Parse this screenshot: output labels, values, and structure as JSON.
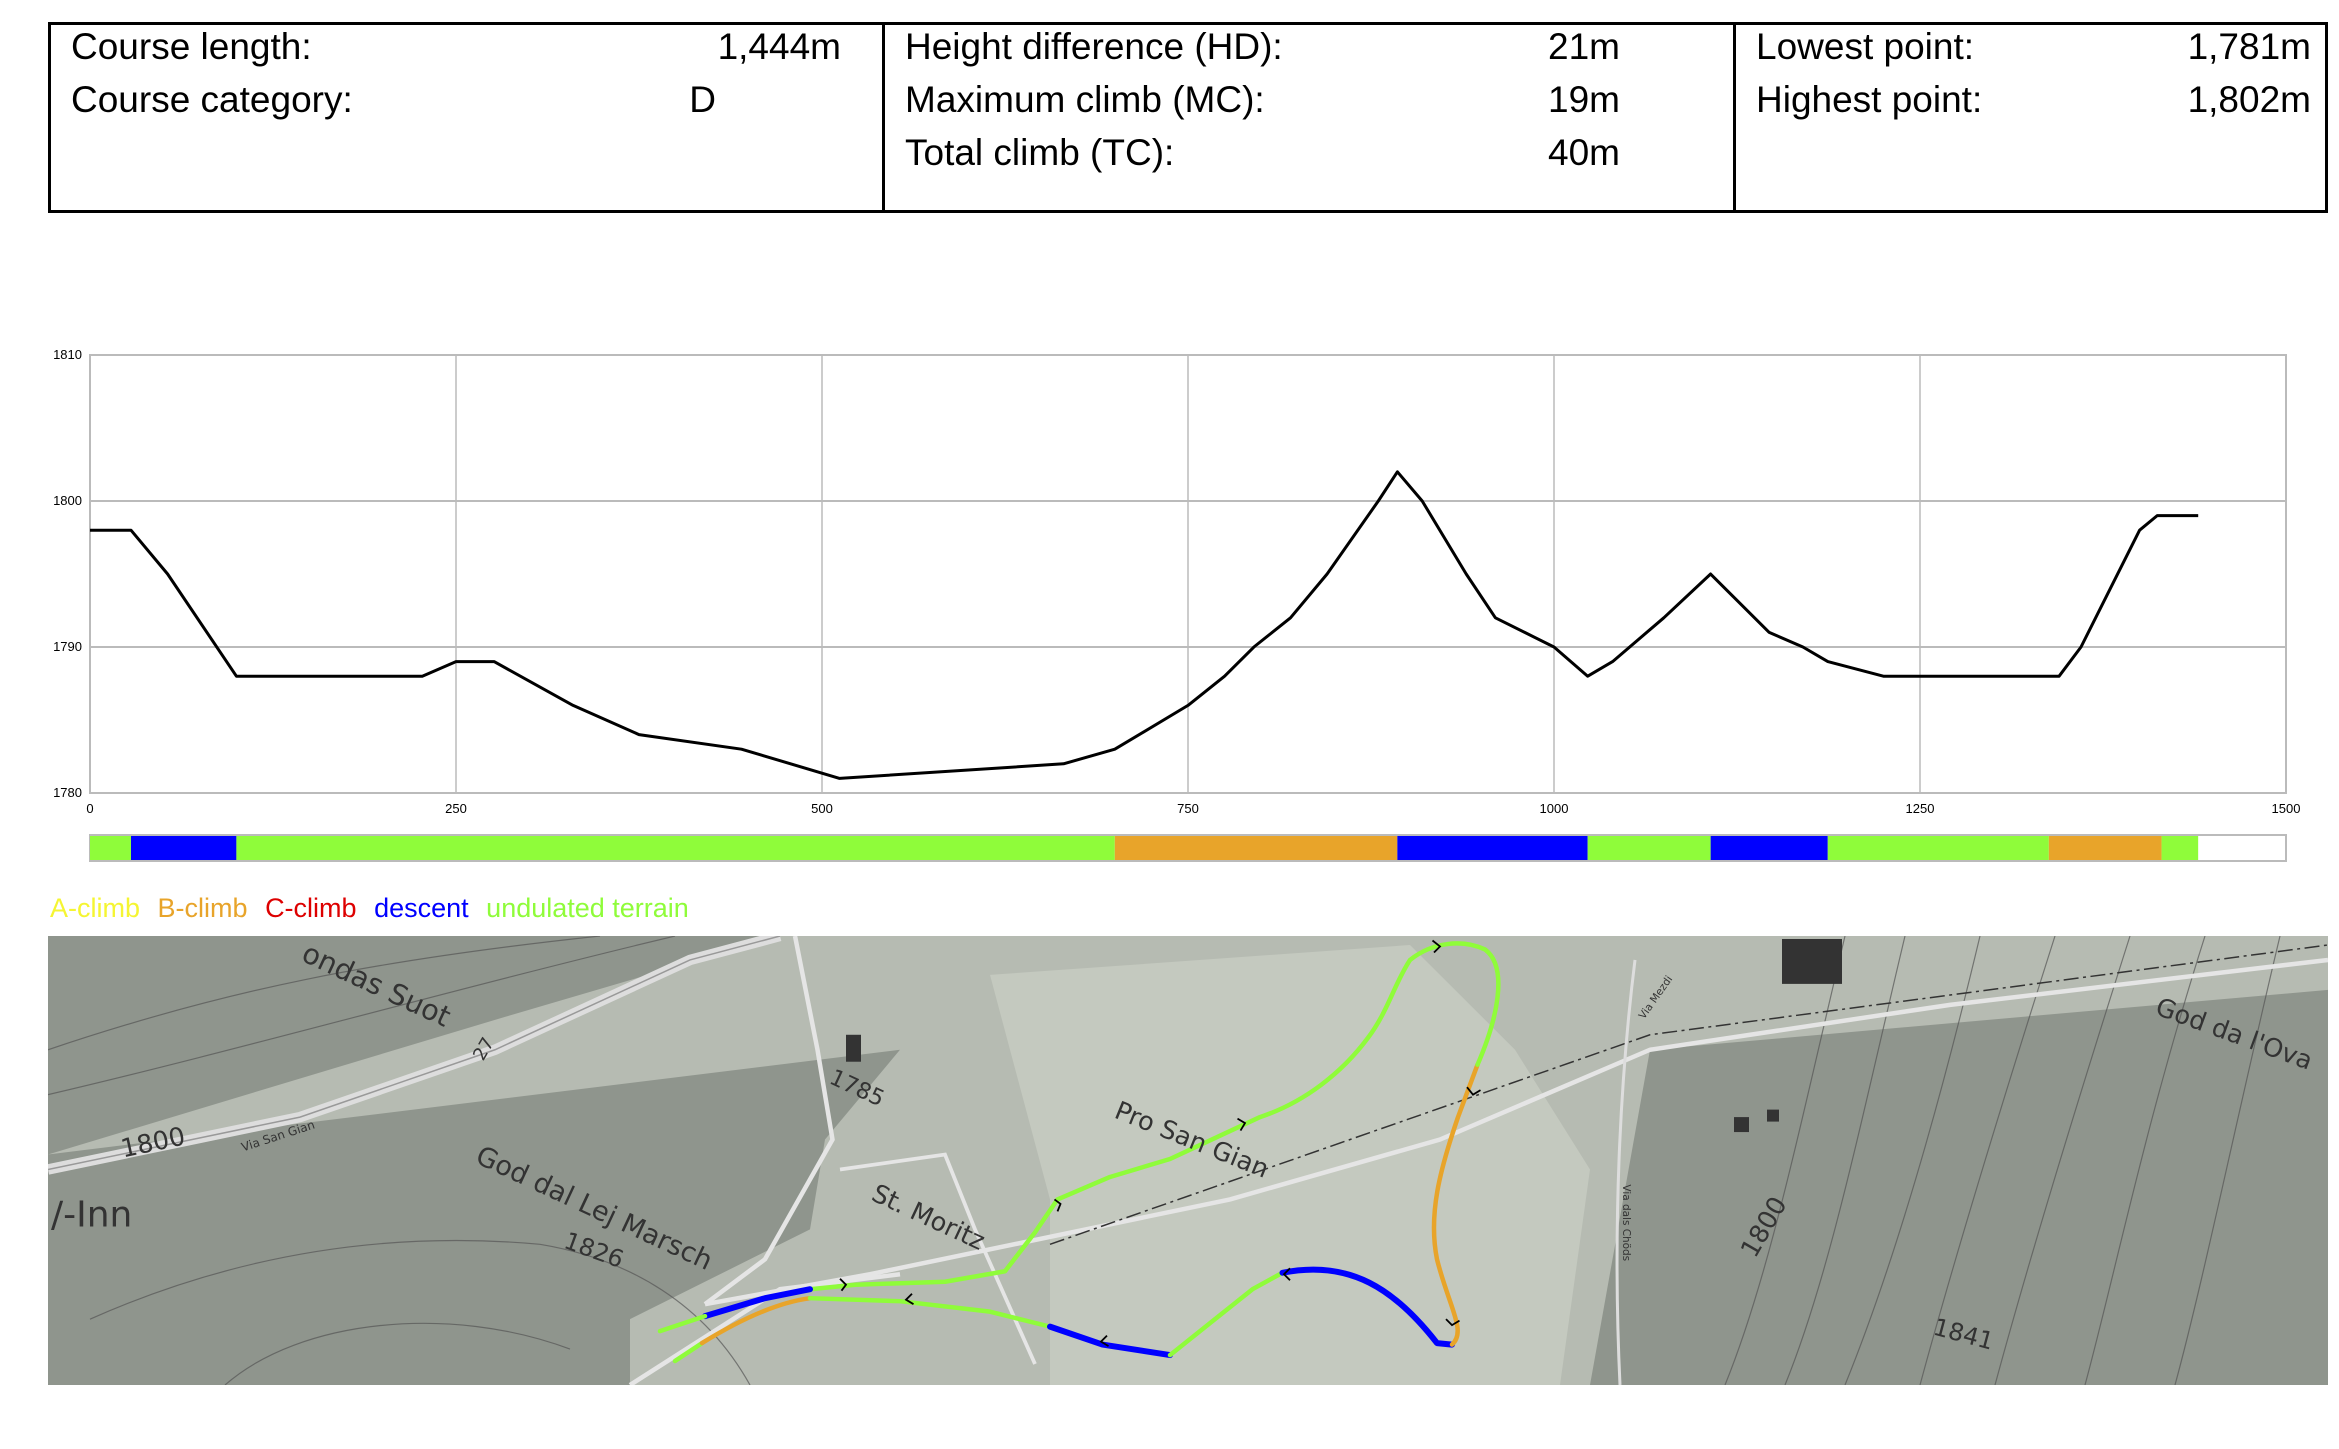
{
  "stats": {
    "col1": [
      {
        "label": "Course length:",
        "value": "1,444m"
      },
      {
        "label": "Course category:",
        "value": "D"
      }
    ],
    "col2": [
      {
        "label": "Height difference (HD):",
        "value": "21m"
      },
      {
        "label": "Maximum climb (MC):",
        "value": "19m"
      },
      {
        "label": "Total climb (TC):",
        "value": "40m"
      }
    ],
    "col3": [
      {
        "label": "Lowest point:",
        "value": "1,781m"
      },
      {
        "label": "Highest point:",
        "value": "1,802m"
      }
    ]
  },
  "chart_data": {
    "type": "line",
    "title": "",
    "xlabel": "",
    "ylabel": "",
    "xlim": [
      0,
      1500
    ],
    "ylim": [
      1780,
      1810
    ],
    "x_ticks": [
      "0",
      "250",
      "500",
      "750",
      "1000",
      "1250",
      "1500"
    ],
    "y_ticks": [
      "1780",
      "1790",
      "1800",
      "1810"
    ],
    "grid": true,
    "line_color": "#000000",
    "points": [
      [
        0,
        1798
      ],
      [
        28,
        1798
      ],
      [
        53,
        1795
      ],
      [
        100,
        1788
      ],
      [
        227,
        1788
      ],
      [
        250,
        1789
      ],
      [
        276,
        1789
      ],
      [
        330,
        1786
      ],
      [
        375,
        1784
      ],
      [
        445,
        1783
      ],
      [
        512,
        1781
      ],
      [
        665,
        1782
      ],
      [
        700,
        1783
      ],
      [
        750,
        1786
      ],
      [
        775,
        1788
      ],
      [
        795,
        1790
      ],
      [
        820,
        1792
      ],
      [
        845,
        1795
      ],
      [
        880,
        1800
      ],
      [
        893,
        1802
      ],
      [
        910,
        1800
      ],
      [
        940,
        1795
      ],
      [
        960,
        1792
      ],
      [
        980,
        1791
      ],
      [
        1000,
        1790
      ],
      [
        1023,
        1788
      ],
      [
        1040,
        1789
      ],
      [
        1075,
        1792
      ],
      [
        1107,
        1795
      ],
      [
        1147,
        1791
      ],
      [
        1170,
        1790
      ],
      [
        1187,
        1789
      ],
      [
        1225,
        1788
      ],
      [
        1345,
        1788
      ],
      [
        1360,
        1790
      ],
      [
        1380,
        1794
      ],
      [
        1400,
        1798
      ],
      [
        1412,
        1799
      ],
      [
        1440,
        1799
      ]
    ],
    "segments": [
      {
        "from": 0,
        "to": 28,
        "type": "undulated"
      },
      {
        "from": 28,
        "to": 100,
        "type": "descent"
      },
      {
        "from": 100,
        "to": 700,
        "type": "undulated"
      },
      {
        "from": 700,
        "to": 893,
        "type": "b"
      },
      {
        "from": 893,
        "to": 1023,
        "type": "descent"
      },
      {
        "from": 1023,
        "to": 1107,
        "type": "undulated"
      },
      {
        "from": 1107,
        "to": 1187,
        "type": "descent"
      },
      {
        "from": 1187,
        "to": 1338,
        "type": "undulated"
      },
      {
        "from": 1338,
        "to": 1415,
        "type": "b"
      },
      {
        "from": 1415,
        "to": 1440,
        "type": "undulated"
      }
    ]
  },
  "legend": [
    {
      "key": "a",
      "label": "A-climb",
      "color": "#f5f532"
    },
    {
      "key": "b",
      "label": "B-climb",
      "color": "#e8a42a"
    },
    {
      "key": "c",
      "label": "C-climb",
      "color": "#dd0000"
    },
    {
      "key": "descent",
      "label": "descent",
      "color": "#0000ff"
    },
    {
      "key": "undulated",
      "label": "undulated terrain",
      "color": "#8ffc3a"
    }
  ],
  "map": {
    "labels": {
      "ondas": "ondas Suot",
      "road27": "27",
      "h1785": "1785",
      "prosangian": "Pro San Gian",
      "goddallej": "God dal Lej Marsch",
      "h1826": "1826",
      "stmoritz": "St. Moritz",
      "viasangian": "Via San Gian",
      "h1800a": "1800",
      "inn": "/-Inn",
      "viamezdi": "Via Mezdi",
      "viadals": "Via dals Chöds",
      "h1800b": "1800",
      "h1841": "1841",
      "goddalova": "God da l'Ova"
    }
  }
}
